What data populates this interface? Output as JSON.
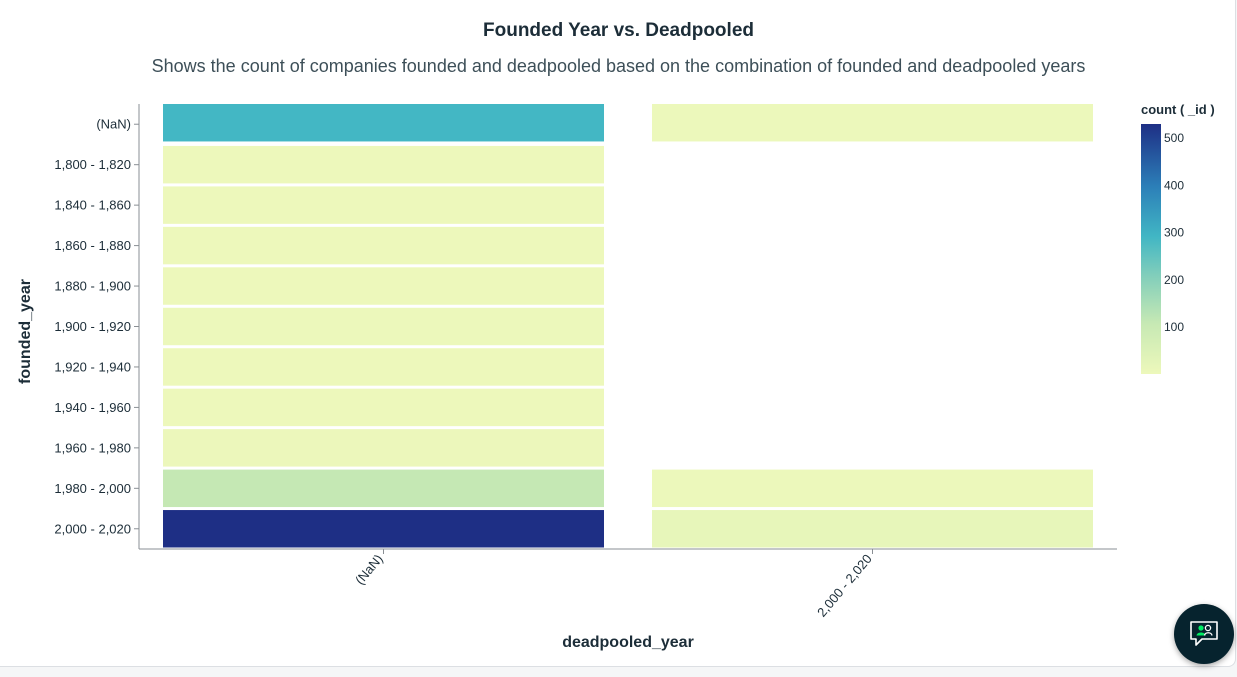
{
  "chart_data": {
    "type": "heatmap",
    "title": "Founded Year vs. Deadpooled",
    "subtitle": "Shows the count of companies founded and deadpooled based on the combination of founded and deadpooled years",
    "xlabel": "deadpooled_year",
    "ylabel": "founded_year",
    "x_categories": [
      "(NaN)",
      "2,000 - 2,020"
    ],
    "y_categories": [
      "(NaN)",
      "1,800 - 1,820",
      "1,840 - 1,860",
      "1,860 - 1,880",
      "1,880 - 1,900",
      "1,900 - 1,920",
      "1,920 - 1,940",
      "1,940 - 1,960",
      "1,960 - 1,980",
      "1,980 - 2,000",
      "2,000 - 2,020"
    ],
    "cells": [
      {
        "x": "(NaN)",
        "y": "(NaN)",
        "value": 290
      },
      {
        "x": "(NaN)",
        "y": "1,800 - 1,820",
        "value": 1
      },
      {
        "x": "(NaN)",
        "y": "1,840 - 1,860",
        "value": 1
      },
      {
        "x": "(NaN)",
        "y": "1,860 - 1,880",
        "value": 1
      },
      {
        "x": "(NaN)",
        "y": "1,880 - 1,900",
        "value": 2
      },
      {
        "x": "(NaN)",
        "y": "1,900 - 1,920",
        "value": 3
      },
      {
        "x": "(NaN)",
        "y": "1,920 - 1,940",
        "value": 2
      },
      {
        "x": "(NaN)",
        "y": "1,940 - 1,960",
        "value": 2
      },
      {
        "x": "(NaN)",
        "y": "1,960 - 1,980",
        "value": 5
      },
      {
        "x": "(NaN)",
        "y": "1,980 - 2,000",
        "value": 110
      },
      {
        "x": "(NaN)",
        "y": "2,000 - 2,020",
        "value": 530
      },
      {
        "x": "2,000 - 2,020",
        "y": "(NaN)",
        "value": 4
      },
      {
        "x": "2,000 - 2,020",
        "y": "1,980 - 2,000",
        "value": 3
      },
      {
        "x": "2,000 - 2,020",
        "y": "2,000 - 2,020",
        "value": 18
      }
    ],
    "color_scale": {
      "title": "count ( _id )",
      "domain": [
        1,
        530
      ],
      "ticks": [
        100,
        200,
        300,
        400,
        500
      ],
      "stops": [
        {
          "offset": 0.0,
          "color": "#edf8bb"
        },
        {
          "offset": 0.2,
          "color": "#c7e9b4"
        },
        {
          "offset": 0.4,
          "color": "#7fcdbb"
        },
        {
          "offset": 0.55,
          "color": "#41b6c4"
        },
        {
          "offset": 0.75,
          "color": "#2c7fb8"
        },
        {
          "offset": 1.0,
          "color": "#1e2f85"
        }
      ]
    }
  }
}
